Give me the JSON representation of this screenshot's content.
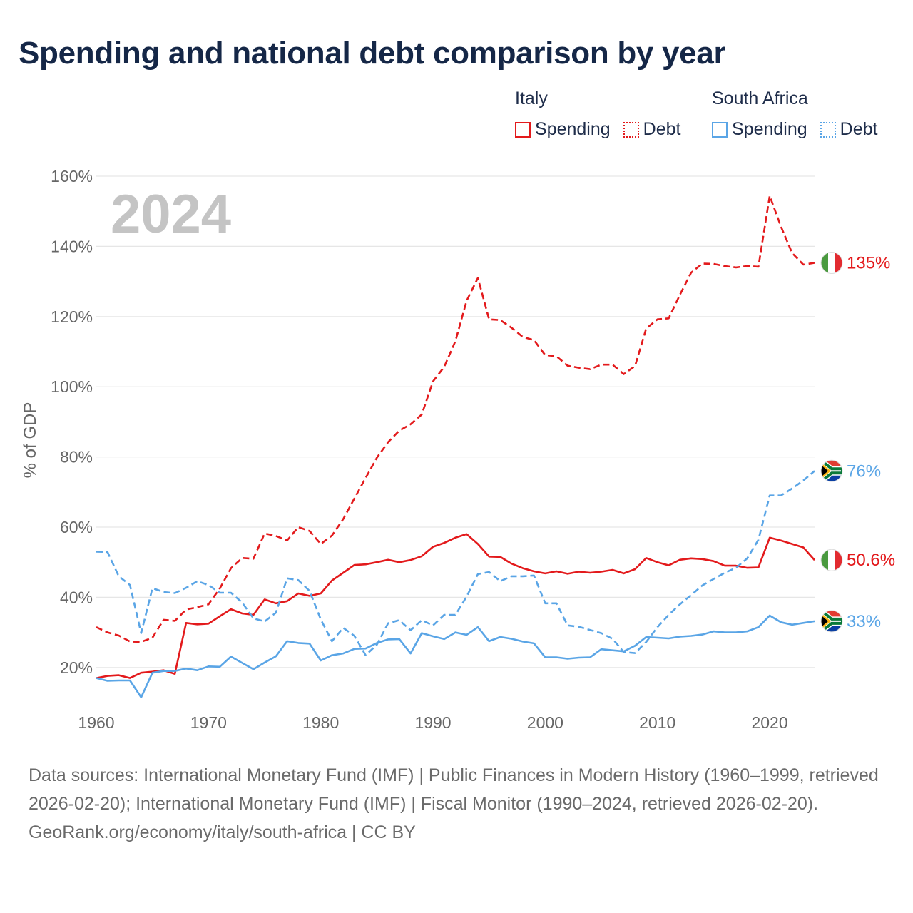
{
  "title": "Spending and national debt comparison by year",
  "legend": {
    "groups": [
      {
        "country": "Italy",
        "items": [
          {
            "label": "Spending",
            "color": "#e31a1c",
            "style": "solid"
          },
          {
            "label": "Debt",
            "color": "#e31a1c",
            "style": "dotted"
          }
        ]
      },
      {
        "country": "South Africa",
        "items": [
          {
            "label": "Spending",
            "color": "#5aa5e6",
            "style": "solid"
          },
          {
            "label": "Debt",
            "color": "#5aa5e6",
            "style": "dotted"
          }
        ]
      }
    ]
  },
  "footer": {
    "sources": "Data sources: International Monetary Fund (IMF) | Public Finances in Modern History (1960–1999, retrieved 2026-02-20); International Monetary Fund (IMF) | Fiscal Monitor (1990–2024, retrieved 2026-02-20).",
    "link": "GeoRank.org/economy/italy/south-africa | CC BY"
  },
  "chart_data": {
    "type": "line",
    "title": "Spending and national debt comparison by year",
    "year_watermark": "2024",
    "xlabel": "",
    "ylabel": "% of GDP",
    "xlim": [
      1960,
      2024
    ],
    "ylim": [
      10,
      160
    ],
    "x_ticks": [
      1960,
      1970,
      1980,
      1990,
      2000,
      2010,
      2020
    ],
    "y_ticks": [
      20,
      40,
      60,
      80,
      100,
      120,
      140,
      160
    ],
    "y_tick_labels": [
      "20%",
      "40%",
      "60%",
      "80%",
      "100%",
      "120%",
      "140%",
      "160%"
    ],
    "x": [
      1960,
      1961,
      1962,
      1963,
      1964,
      1965,
      1966,
      1967,
      1968,
      1969,
      1970,
      1971,
      1972,
      1973,
      1974,
      1975,
      1976,
      1977,
      1978,
      1979,
      1980,
      1981,
      1982,
      1983,
      1984,
      1985,
      1986,
      1987,
      1988,
      1989,
      1990,
      1991,
      1992,
      1993,
      1994,
      1995,
      1996,
      1997,
      1998,
      1999,
      2000,
      2001,
      2002,
      2003,
      2004,
      2005,
      2006,
      2007,
      2008,
      2009,
      2010,
      2011,
      2012,
      2013,
      2014,
      2015,
      2016,
      2017,
      2018,
      2019,
      2020,
      2021,
      2022,
      2023,
      2024
    ],
    "series": [
      {
        "name": "Italy Spending",
        "country": "Italy",
        "measure": "Spending",
        "color": "#e31a1c",
        "dash": "solid",
        "end_label": "50.6%",
        "flag": "italy",
        "values": [
          17,
          17.6,
          17.8,
          17,
          18.5,
          18.8,
          19.2,
          18.2,
          32.7,
          32.3,
          32.5,
          34.6,
          36.6,
          35.4,
          35,
          39.4,
          38.3,
          38.9,
          41.1,
          40.4,
          41.1,
          44.8,
          47,
          49.2,
          49.4,
          50,
          50.7,
          50,
          50.6,
          51.7,
          54.4,
          55.5,
          57,
          58,
          55.2,
          51.6,
          51.5,
          49.6,
          48.3,
          47.4,
          46.8,
          47.4,
          46.7,
          47.3,
          47,
          47.3,
          47.8,
          46.8,
          48,
          51.2,
          50,
          49.1,
          50.7,
          51.1,
          50.9,
          50.3,
          49,
          49,
          48.4,
          48.5,
          57,
          56.2,
          55.2,
          54.2,
          50.6
        ]
      },
      {
        "name": "Italy Debt",
        "country": "Italy",
        "measure": "Debt",
        "color": "#e31a1c",
        "dash": "dashed",
        "end_label": "135%",
        "flag": "italy",
        "values": [
          31.5,
          30,
          29.1,
          27.4,
          27.3,
          28.5,
          33.6,
          33.3,
          36.5,
          37.2,
          38,
          42.5,
          48.3,
          51.2,
          51,
          58.2,
          57.5,
          56.2,
          60,
          58.9,
          55.2,
          57.6,
          62.3,
          68.2,
          74,
          79.8,
          84.2,
          87.5,
          89.3,
          92.1,
          101.5,
          105.7,
          113,
          124.5,
          131,
          119.2,
          119,
          116.8,
          114.2,
          113.3,
          109,
          108.7,
          106,
          105.4,
          105,
          106.3,
          106.3,
          103.6,
          105.9,
          116.6,
          119.2,
          119.5,
          126.2,
          132.5,
          135.1,
          135,
          134.4,
          134,
          134.4,
          134.2,
          154.4,
          145.7,
          138.1,
          134.8,
          135.3
        ]
      },
      {
        "name": "South Africa Spending",
        "country": "South Africa",
        "measure": "Spending",
        "color": "#5aa5e6",
        "dash": "solid",
        "end_label": "33%",
        "flag": "south-africa",
        "values": [
          17,
          16.2,
          16.3,
          16.3,
          11.5,
          18.5,
          19,
          19,
          19.7,
          19.2,
          20.3,
          20.2,
          23.1,
          21.3,
          19.5,
          21.4,
          23.2,
          27.5,
          27,
          26.8,
          22,
          23.5,
          24,
          25.3,
          25.4,
          27,
          28,
          28.1,
          24,
          29.8,
          28.9,
          28.1,
          30,
          29.3,
          31.5,
          27.5,
          28.7,
          28.2,
          27.4,
          26.9,
          22.9,
          22.9,
          22.5,
          22.8,
          22.9,
          25.2,
          24.9,
          24.6,
          26.2,
          28.7,
          28.5,
          28.3,
          28.8,
          29,
          29.4,
          30.3,
          30,
          30,
          30.3,
          31.5,
          34.8,
          32.9,
          32.2,
          32.7,
          33.2
        ]
      },
      {
        "name": "South Africa Debt",
        "country": "South Africa",
        "measure": "Debt",
        "color": "#5aa5e6",
        "dash": "dashed",
        "end_label": "76%",
        "flag": "south-africa",
        "values": [
          53,
          52.9,
          46,
          43.5,
          29.8,
          42.6,
          41.5,
          41.2,
          42.7,
          44.6,
          43.5,
          41.3,
          41.3,
          38.5,
          34,
          33.1,
          35.6,
          45.4,
          44.9,
          41.8,
          33.7,
          27.5,
          31.3,
          29,
          23.5,
          26.5,
          32.6,
          33.5,
          30.6,
          33.5,
          32,
          35,
          35,
          40.2,
          46.6,
          47.2,
          44.6,
          46,
          46,
          46.2,
          38.3,
          38.3,
          32,
          31.6,
          30.7,
          29.8,
          28.2,
          24.4,
          24.1,
          27.3,
          31.5,
          35,
          38,
          40.6,
          43.4,
          45.2,
          47,
          48.4,
          51.1,
          56.4,
          69,
          69,
          71,
          73.3,
          76
        ]
      }
    ]
  }
}
